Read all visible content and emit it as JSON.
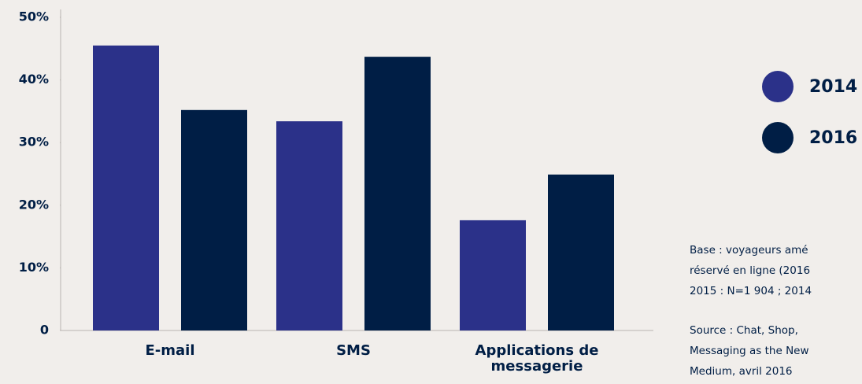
{
  "chart_data": {
    "type": "bar",
    "categories": [
      "E-mail",
      "SMS",
      "Applications de messagerie"
    ],
    "series": [
      {
        "name": "2014",
        "color": "#2b3189",
        "values": [
          45.5,
          33.4,
          17.6
        ]
      },
      {
        "name": "2016",
        "color": "#001e45",
        "values": [
          35.2,
          43.7,
          24.9
        ]
      }
    ],
    "ylim": [
      0,
      50
    ],
    "yticks": [
      0,
      {
        "value": 10,
        "label": "10%"
      },
      {
        "value": 20,
        "label": "20%"
      },
      {
        "value": 30,
        "label": "30%"
      },
      {
        "value": 40,
        "label": "40%"
      },
      {
        "value": 50,
        "label": "50%"
      }
    ],
    "grid": false,
    "legend": "right",
    "notes": [
      [
        "Base : voyageurs amé",
        "réservé en ligne (2016",
        "2015 : N=1 904 ; 2014"
      ],
      [
        "Source : Chat, Shop,",
        "Messaging as the New",
        "Medium, avril 2016"
      ]
    ]
  }
}
